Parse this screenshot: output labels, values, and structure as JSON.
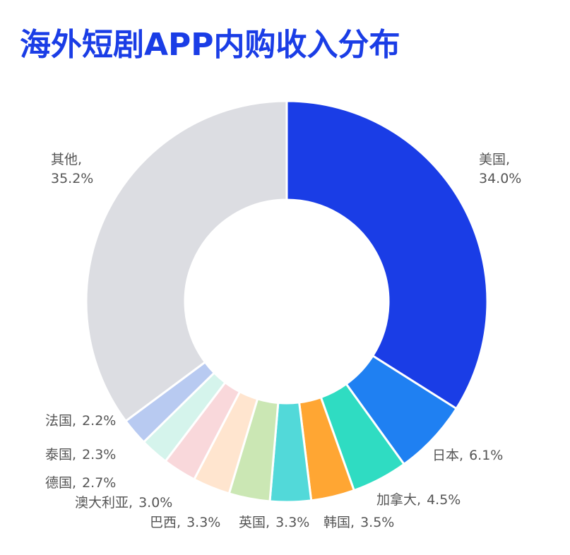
{
  "chart_data": {
    "type": "donut",
    "title": "海外短剧APP内购收入分布",
    "categories": [
      "美国",
      "日本",
      "加拿大",
      "韩国",
      "英国",
      "巴西",
      "澳大利亚",
      "德国",
      "泰国",
      "法国",
      "其他"
    ],
    "values": [
      34.0,
      6.1,
      4.5,
      3.5,
      3.3,
      3.3,
      3.0,
      2.7,
      2.3,
      2.2,
      35.2
    ],
    "value_labels": [
      "34.0%",
      "6.1%",
      "4.5%",
      "3.5%",
      "3.3%",
      "3.3%",
      "3.0%",
      "2.7%",
      "2.3%",
      "2.2%",
      "35.2%"
    ],
    "label_separator": ",",
    "colors": [
      "#1a3de6",
      "#1f80f2",
      "#2fdcc2",
      "#ffa633",
      "#52d9d9",
      "#cbe7b4",
      "#ffe5cf",
      "#f9d8db",
      "#d5f4ec",
      "#b8caf1",
      "#dcdde2"
    ]
  }
}
